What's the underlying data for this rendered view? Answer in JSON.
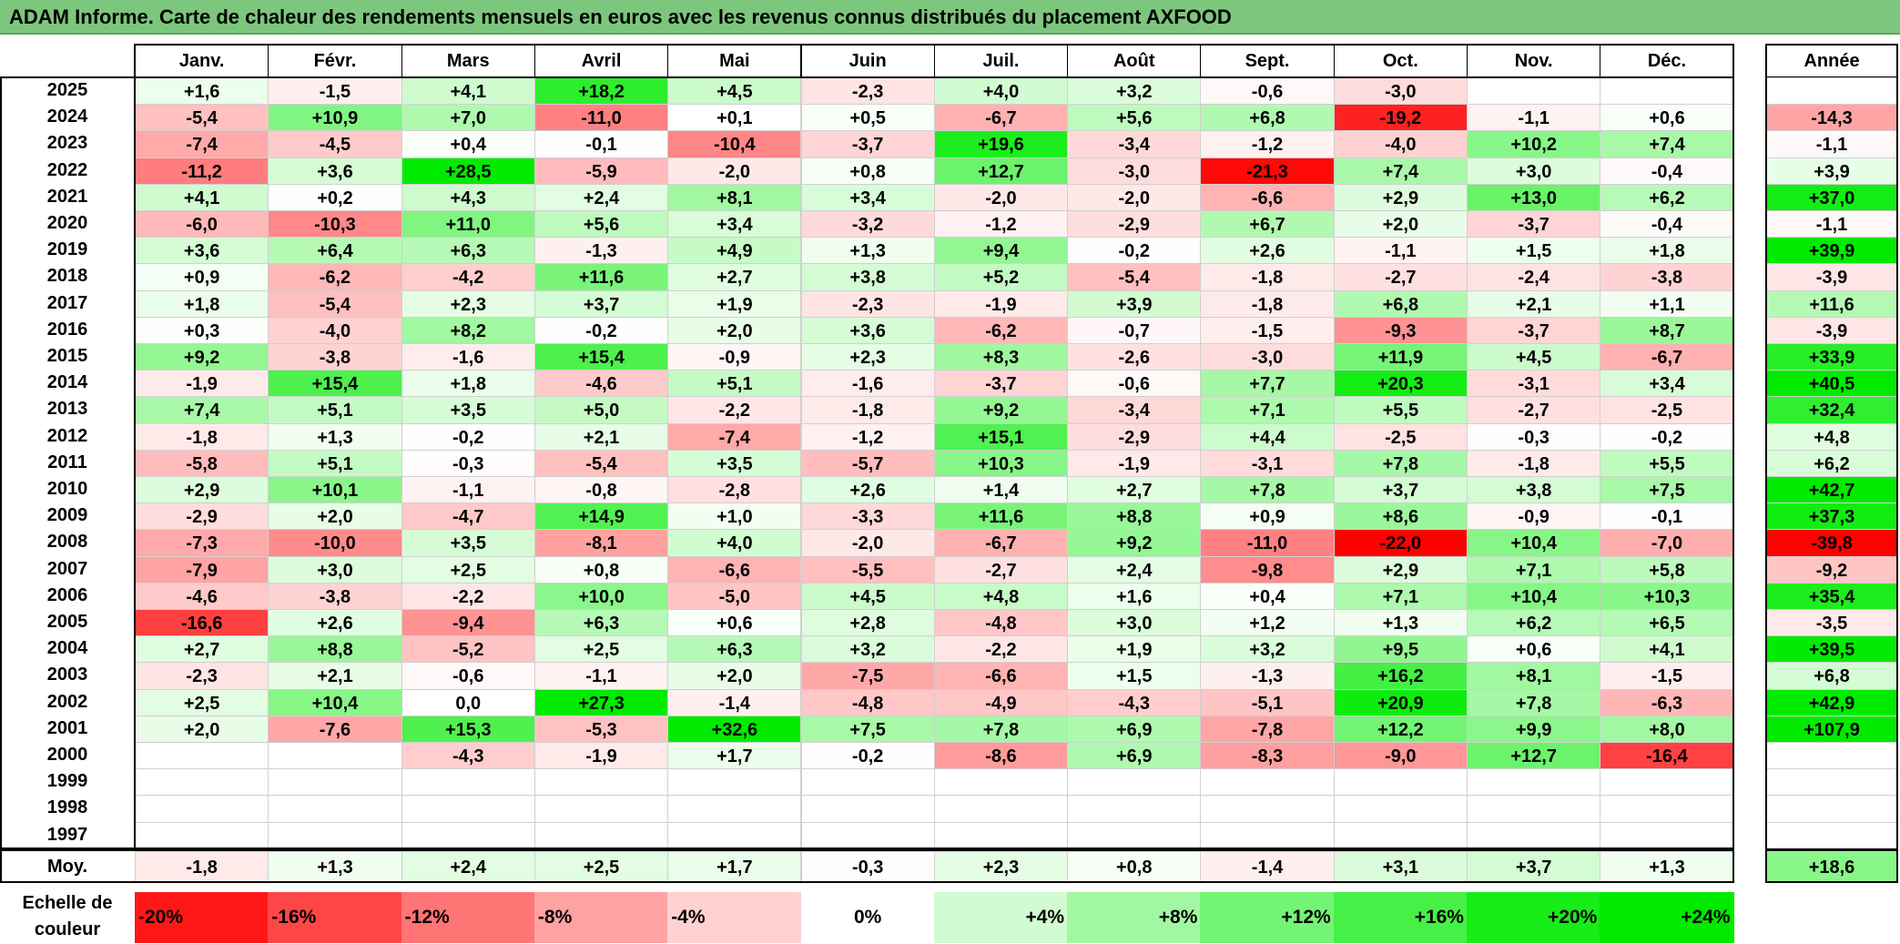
{
  "title": "ADAM Informe. Carte de chaleur des rendements mensuels en euros avec les revenus connus distribués du placement AXFOOD",
  "chart_data": {
    "type": "heatmap",
    "months": [
      "Janv.",
      "Févr.",
      "Mars",
      "Avril",
      "Mai",
      "Juin",
      "Juil.",
      "Août",
      "Sept.",
      "Oct.",
      "Nov.",
      "Déc."
    ],
    "annual_header": "Année",
    "average_label": "Moy.",
    "rows": [
      {
        "year": "2025",
        "m": [
          "+1,6",
          "-1,5",
          "+4,1",
          "+18,2",
          "+4,5",
          "-2,3",
          "+4,0",
          "+3,2",
          "-0,6",
          "-3,0",
          "",
          ""
        ],
        "annual": ""
      },
      {
        "year": "2024",
        "m": [
          "-5,4",
          "+10,9",
          "+7,0",
          "-11,0",
          "+0,1",
          "+0,5",
          "-6,7",
          "+5,6",
          "+6,8",
          "-19,2",
          "-1,1",
          "+0,6"
        ],
        "annual": "-14,3"
      },
      {
        "year": "2023",
        "m": [
          "-7,4",
          "-4,5",
          "+0,4",
          "-0,1",
          "-10,4",
          "-3,7",
          "+19,6",
          "-3,4",
          "-1,2",
          "-4,0",
          "+10,2",
          "+7,4"
        ],
        "annual": "-1,1"
      },
      {
        "year": "2022",
        "m": [
          "-11,2",
          "+3,6",
          "+28,5",
          "-5,9",
          "-2,0",
          "+0,8",
          "+12,7",
          "-3,0",
          "-21,3",
          "+7,4",
          "+3,0",
          "-0,4"
        ],
        "annual": "+3,9"
      },
      {
        "year": "2021",
        "m": [
          "+4,1",
          "+0,2",
          "+4,3",
          "+2,4",
          "+8,1",
          "+3,4",
          "-2,0",
          "-2,0",
          "-6,6",
          "+2,9",
          "+13,0",
          "+6,2"
        ],
        "annual": "+37,0"
      },
      {
        "year": "2020",
        "m": [
          "-6,0",
          "-10,3",
          "+11,0",
          "+5,6",
          "+3,4",
          "-3,2",
          "-1,2",
          "-2,9",
          "+6,7",
          "+2,0",
          "-3,7",
          "-0,4"
        ],
        "annual": "-1,1"
      },
      {
        "year": "2019",
        "m": [
          "+3,6",
          "+6,4",
          "+6,3",
          "-1,3",
          "+4,9",
          "+1,3",
          "+9,4",
          "-0,2",
          "+2,6",
          "-1,1",
          "+1,5",
          "+1,8"
        ],
        "annual": "+39,9"
      },
      {
        "year": "2018",
        "m": [
          "+0,9",
          "-6,2",
          "-4,2",
          "+11,6",
          "+2,7",
          "+3,8",
          "+5,2",
          "-5,4",
          "-1,8",
          "-2,7",
          "-2,4",
          "-3,8"
        ],
        "annual": "-3,9"
      },
      {
        "year": "2017",
        "m": [
          "+1,8",
          "-5,4",
          "+2,3",
          "+3,7",
          "+1,9",
          "-2,3",
          "-1,9",
          "+3,9",
          "-1,8",
          "+6,8",
          "+2,1",
          "+1,1"
        ],
        "annual": "+11,6"
      },
      {
        "year": "2016",
        "m": [
          "+0,3",
          "-4,0",
          "+8,2",
          "-0,2",
          "+2,0",
          "+3,6",
          "-6,2",
          "-0,7",
          "-1,5",
          "-9,3",
          "-3,7",
          "+8,7"
        ],
        "annual": "-3,9"
      },
      {
        "year": "2015",
        "m": [
          "+9,2",
          "-3,8",
          "-1,6",
          "+15,4",
          "-0,9",
          "+2,3",
          "+8,3",
          "-2,6",
          "-3,0",
          "+11,9",
          "+4,5",
          "-6,7"
        ],
        "annual": "+33,9"
      },
      {
        "year": "2014",
        "m": [
          "-1,9",
          "+15,4",
          "+1,8",
          "-4,6",
          "+5,1",
          "-1,6",
          "-3,7",
          "-0,6",
          "+7,7",
          "+20,3",
          "-3,1",
          "+3,4"
        ],
        "annual": "+40,5"
      },
      {
        "year": "2013",
        "m": [
          "+7,4",
          "+5,1",
          "+3,5",
          "+5,0",
          "-2,2",
          "-1,8",
          "+9,2",
          "-3,4",
          "+7,1",
          "+5,5",
          "-2,7",
          "-2,5"
        ],
        "annual": "+32,4"
      },
      {
        "year": "2012",
        "m": [
          "-1,8",
          "+1,3",
          "-0,2",
          "+2,1",
          "-7,4",
          "-1,2",
          "+15,1",
          "-2,9",
          "+4,4",
          "-2,5",
          "-0,3",
          "-0,2"
        ],
        "annual": "+4,8"
      },
      {
        "year": "2011",
        "m": [
          "-5,8",
          "+5,1",
          "-0,3",
          "-5,4",
          "+3,5",
          "-5,7",
          "+10,3",
          "-1,9",
          "-3,1",
          "+7,8",
          "-1,8",
          "+5,5"
        ],
        "annual": "+6,2"
      },
      {
        "year": "2010",
        "m": [
          "+2,9",
          "+10,1",
          "-1,1",
          "-0,8",
          "-2,8",
          "+2,6",
          "+1,4",
          "+2,7",
          "+7,8",
          "+3,7",
          "+3,8",
          "+7,5"
        ],
        "annual": "+42,7"
      },
      {
        "year": "2009",
        "m": [
          "-2,9",
          "+2,0",
          "-4,7",
          "+14,9",
          "+1,0",
          "-3,3",
          "+11,6",
          "+8,8",
          "+0,9",
          "+8,6",
          "-0,9",
          "-0,1"
        ],
        "annual": "+37,3"
      },
      {
        "year": "2008",
        "m": [
          "-7,3",
          "-10,0",
          "+3,5",
          "-8,1",
          "+4,0",
          "-2,0",
          "-6,7",
          "+9,2",
          "-11,0",
          "-22,0",
          "+10,4",
          "-7,0"
        ],
        "annual": "-39,8"
      },
      {
        "year": "2007",
        "m": [
          "-7,9",
          "+3,0",
          "+2,5",
          "+0,8",
          "-6,6",
          "-5,5",
          "-2,7",
          "+2,4",
          "-9,8",
          "+2,9",
          "+7,1",
          "+5,8"
        ],
        "annual": "-9,2"
      },
      {
        "year": "2006",
        "m": [
          "-4,6",
          "-3,8",
          "-2,2",
          "+10,0",
          "-5,0",
          "+4,5",
          "+4,8",
          "+1,6",
          "+0,4",
          "+7,1",
          "+10,4",
          "+10,3"
        ],
        "annual": "+35,4"
      },
      {
        "year": "2005",
        "m": [
          "-16,6",
          "+2,6",
          "-9,4",
          "+6,3",
          "+0,6",
          "+2,8",
          "-4,8",
          "+3,0",
          "+1,2",
          "+1,3",
          "+6,2",
          "+6,5"
        ],
        "annual": "-3,5"
      },
      {
        "year": "2004",
        "m": [
          "+2,7",
          "+8,8",
          "-5,2",
          "+2,5",
          "+6,3",
          "+3,2",
          "-2,2",
          "+1,9",
          "+3,2",
          "+9,5",
          "+0,6",
          "+4,1"
        ],
        "annual": "+39,5"
      },
      {
        "year": "2003",
        "m": [
          "-2,3",
          "+2,1",
          "-0,6",
          "-1,1",
          "+2,0",
          "-7,5",
          "-6,6",
          "+1,5",
          "-1,3",
          "+16,2",
          "+8,1",
          "-1,5"
        ],
        "annual": "+6,8"
      },
      {
        "year": "2002",
        "m": [
          "+2,5",
          "+10,4",
          "0,0",
          "+27,3",
          "-1,4",
          "-4,8",
          "-4,9",
          "-4,3",
          "-5,1",
          "+20,9",
          "+7,8",
          "-6,3"
        ],
        "annual": "+42,9"
      },
      {
        "year": "2001",
        "m": [
          "+2,0",
          "-7,6",
          "+15,3",
          "-5,3",
          "+32,6",
          "+7,5",
          "+7,8",
          "+6,9",
          "-7,8",
          "+12,2",
          "+9,9",
          "+8,0"
        ],
        "annual": "+107,9"
      },
      {
        "year": "2000",
        "m": [
          "",
          "",
          "-4,3",
          "-1,9",
          "+1,7",
          "-0,2",
          "-8,6",
          "+6,9",
          "-8,3",
          "-9,0",
          "+12,7",
          "-16,4"
        ],
        "annual": ""
      },
      {
        "year": "1999",
        "m": [
          "",
          "",
          "",
          "",
          "",
          "",
          "",
          "",
          "",
          "",
          "",
          ""
        ],
        "annual": ""
      },
      {
        "year": "1998",
        "m": [
          "",
          "",
          "",
          "",
          "",
          "",
          "",
          "",
          "",
          "",
          "",
          ""
        ],
        "annual": ""
      },
      {
        "year": "1997",
        "m": [
          "",
          "",
          "",
          "",
          "",
          "",
          "",
          "",
          "",
          "",
          "",
          ""
        ],
        "annual": ""
      }
    ],
    "average": {
      "m": [
        "-1,8",
        "+1,3",
        "+2,4",
        "+2,5",
        "+1,7",
        "-0,3",
        "+2,3",
        "+0,8",
        "-1,4",
        "+3,1",
        "+3,7",
        "+1,3"
      ],
      "annual": "+18,6"
    },
    "scale": {
      "label_line1": "Echelle de",
      "label_line2": "couleur",
      "items": [
        "-20%",
        "-16%",
        "-12%",
        "-8%",
        "-4%",
        "0%",
        "+4%",
        "+8%",
        "+12%",
        "+16%",
        "+20%",
        "+24%"
      ]
    },
    "colors": {
      "negative_max": "#ff0000",
      "zero": "#ffffff",
      "positive_max": "#00ee00",
      "title_bg": "#7dc67d"
    }
  }
}
